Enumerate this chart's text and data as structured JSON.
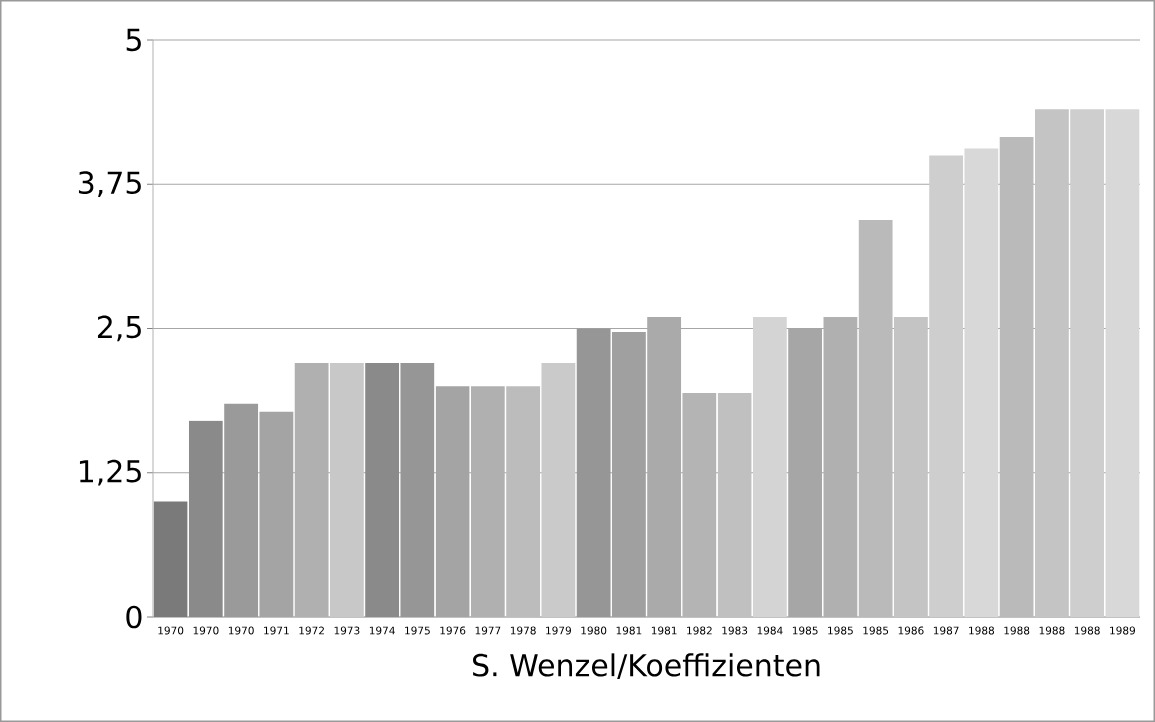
{
  "chart_data": {
    "type": "bar",
    "xlabel": "S. Wenzel/Koeffizienten",
    "categories": [
      "1970",
      "1970",
      "1970",
      "1971",
      "1972",
      "1973",
      "1974",
      "1975",
      "1976",
      "1977",
      "1978",
      "1979",
      "1980",
      "1981",
      "1981",
      "1982",
      "1983",
      "1984",
      "1985",
      "1985",
      "1985",
      "1986",
      "1987",
      "1988",
      "1988",
      "1988",
      "1988",
      "1989"
    ],
    "values": [
      1,
      1.7,
      1.85,
      1.78,
      2.2,
      2.2,
      2.2,
      2.2,
      2,
      2,
      2,
      2.2,
      2.5,
      2.47,
      2.6,
      1.94,
      1.94,
      2.6,
      2.5,
      2.6,
      3.44,
      2.6,
      4,
      4.06,
      4.16,
      4.4,
      4.4,
      4.4
    ],
    "colors": [
      "#7a7a7a",
      "#8a8a8a",
      "#9a9a9a",
      "#a4a4a4",
      "#b0b0b0",
      "#c8c8c8",
      "#8a8a8a",
      "#969696",
      "#a4a4a4",
      "#b0b0b0",
      "#bcbcbc",
      "#cacaca",
      "#969696",
      "#a0a0a0",
      "#aaaaaa",
      "#b4b4b4",
      "#c0c0c0",
      "#d4d4d4",
      "#a6a6a6",
      "#b0b0b0",
      "#bababa",
      "#c4c4c4",
      "#cecece",
      "#d8d8d8",
      "#bababa",
      "#c4c4c4",
      "#cecece",
      "#d8d8d8"
    ],
    "ylim": [
      0,
      5
    ],
    "yticks": [
      0,
      {
        "value": 1.25,
        "label": "1,25"
      },
      {
        "value": 2.5,
        "label": "2,5"
      },
      {
        "value": 3.75,
        "label": "3,75"
      },
      5
    ],
    "grid": "y"
  }
}
